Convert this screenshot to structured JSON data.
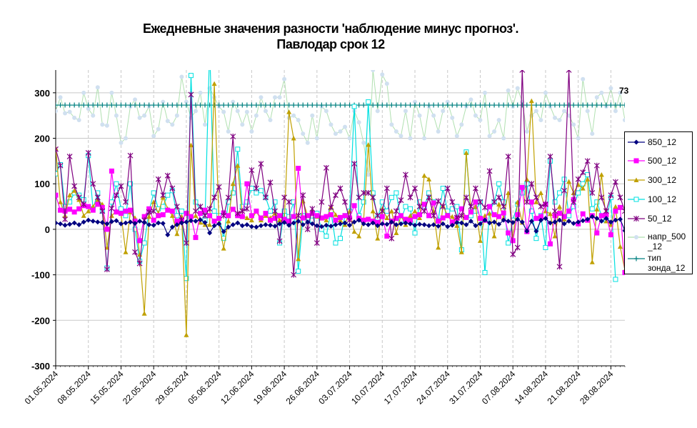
{
  "title_line1": "Ежедневные значения разности 'наблюдение минус прогноз'.",
  "title_line2": "Павлодар    срок 12",
  "chart_data": {
    "type": "line",
    "ylim": [
      -300,
      350
    ],
    "yticks": [
      -300,
      -200,
      -100,
      0,
      100,
      200,
      300
    ],
    "x_tick_labels": [
      "01.05.2024",
      "08.05.2024",
      "15.05.2024",
      "22.05.2024",
      "29.05.2024",
      "05.06.2024",
      "12.06.2024",
      "19.06.2024",
      "26.06.2024",
      "03.07.2024",
      "10.07.2024",
      "17.07.2024",
      "24.07.2024",
      "31.07.2024",
      "07.08.2024",
      "14.08.2024",
      "21.08.2024",
      "28.08.2024"
    ],
    "x_start_date": "01.05.2024",
    "n_days": 123,
    "annotation": "73",
    "series": [
      {
        "name": "850_12",
        "color": "#000080",
        "marker": "diamond",
        "values": [
          14,
          12,
          9,
          11,
          14,
          10,
          16,
          20,
          18,
          16,
          15,
          12,
          17,
          19,
          12,
          14,
          16,
          13,
          18,
          15,
          10,
          9,
          14,
          13,
          -12,
          5,
          10,
          14,
          16,
          19,
          18,
          21,
          15,
          -8,
          8,
          12,
          -5,
          5,
          10,
          14,
          8,
          10,
          6,
          5,
          8,
          10,
          9,
          7,
          12,
          15,
          9,
          14,
          18,
          10,
          16,
          12,
          8,
          6,
          9,
          7,
          10,
          12,
          14,
          9,
          16,
          20,
          12,
          10,
          14,
          8,
          12,
          11,
          16,
          10,
          12,
          14,
          12,
          9,
          11,
          10,
          8,
          10,
          7,
          12,
          6,
          9,
          15,
          14,
          10,
          18,
          8,
          12,
          20,
          14,
          16,
          11,
          20,
          18,
          15,
          22,
          16,
          -4,
          18,
          -4,
          20,
          24,
          14,
          16,
          20,
          12,
          18,
          13,
          16,
          19,
          22,
          28,
          24,
          18,
          24,
          16,
          20,
          22,
          -3
        ]
      },
      {
        "name": "500_12",
        "color": "#FF00FF",
        "marker": "square",
        "values": [
          75,
          42,
          40,
          44,
          38,
          45,
          52,
          50,
          42,
          55,
          48,
          0,
          128,
          38,
          35,
          40,
          42,
          18,
          -25,
          28,
          45,
          20,
          30,
          32,
          42,
          40,
          18,
          20,
          35,
          28,
          -18,
          35,
          42,
          30,
          18,
          24,
          36,
          30,
          44,
          30,
          28,
          100,
          30,
          40,
          25,
          35,
          20,
          24,
          30,
          22,
          18,
          28,
          134,
          25,
          30,
          35,
          30,
          25,
          28,
          32,
          20,
          26,
          30,
          25,
          52,
          24,
          20,
          22,
          18,
          15,
          28,
          -15,
          18,
          24,
          30,
          22,
          20,
          28,
          32,
          55,
          30,
          58,
          18,
          25,
          30,
          16,
          24,
          45,
          26,
          38,
          60,
          24,
          20,
          50,
          32,
          28,
          36,
          -8,
          -25,
          32,
          92,
          -5,
          60,
          24,
          28,
          55,
          -32,
          30,
          35,
          28,
          40,
          65,
          12,
          34,
          20,
          30,
          -8,
          30,
          32,
          -12,
          40,
          48,
          -95
        ]
      },
      {
        "name": "300_12",
        "color": "#C0A000",
        "marker": "triangle",
        "values": [
          178,
          60,
          30,
          75,
          85,
          65,
          30,
          40,
          50,
          65,
          55,
          -40,
          30,
          40,
          35,
          -50,
          38,
          25,
          -55,
          -185,
          28,
          60,
          35,
          70,
          45,
          30,
          -10,
          28,
          -232,
          185,
          30,
          15,
          10,
          10,
          320,
          15,
          -42,
          18,
          100,
          140,
          30,
          25,
          20,
          40,
          20,
          30,
          25,
          35,
          20,
          18,
          258,
          200,
          -65,
          62,
          30,
          40,
          28,
          24,
          20,
          50,
          32,
          20,
          10,
          40,
          -5,
          -15,
          20,
          186,
          40,
          -20,
          45,
          25,
          40,
          -8,
          30,
          10,
          30,
          40,
          25,
          118,
          110,
          40,
          -40,
          52,
          30,
          28,
          8,
          -50,
          168,
          40,
          50,
          -25,
          30,
          35,
          -15,
          55,
          25,
          80,
          -20,
          60,
          15,
          110,
          282,
          60,
          80,
          40,
          34,
          -15,
          50,
          22,
          105,
          80,
          98,
          90,
          110,
          -72,
          44,
          120,
          18,
          10,
          50,
          -38,
          -90
        ]
      },
      {
        "name": "100_12",
        "color": "#00E0E0",
        "marker": "square",
        "values": [
          122,
          142,
          50,
          60,
          80,
          75,
          65,
          162,
          45,
          80,
          40,
          -85,
          60,
          100,
          45,
          30,
          100,
          0,
          -70,
          -30,
          40,
          80,
          45,
          50,
          75,
          85,
          30,
          40,
          -108,
          338,
          60,
          42,
          20,
          400,
          40,
          30,
          -20,
          60,
          80,
          176,
          50,
          60,
          90,
          80,
          85,
          70,
          40,
          60,
          -30,
          40,
          28,
          60,
          -92,
          30,
          25,
          20,
          35,
          0,
          -15,
          40,
          -30,
          -20,
          30,
          40,
          270,
          30,
          60,
          280,
          80,
          25,
          60,
          40,
          70,
          80,
          20,
          50,
          45,
          -8,
          60,
          50,
          80,
          60,
          20,
          90,
          40,
          45,
          50,
          -45,
          170,
          30,
          40,
          60,
          -95,
          40,
          60,
          100,
          60,
          -30,
          20,
          55,
          80,
          100,
          40,
          -20,
          30,
          -40,
          150,
          60,
          80,
          110,
          30,
          50,
          80,
          100,
          120,
          45,
          60,
          30,
          20,
          70,
          -110
        ]
      },
      {
        "name": "50_12",
        "color": "#800080",
        "marker": "star",
        "values": [
          176,
          140,
          22,
          160,
          95,
          70,
          55,
          168,
          100,
          70,
          40,
          -88,
          46,
          75,
          95,
          60,
          162,
          -50,
          -75,
          20,
          38,
          40,
          110,
          75,
          118,
          90,
          50,
          20,
          -30,
          296,
          40,
          50,
          30,
          45,
          70,
          93,
          30,
          70,
          204,
          35,
          40,
          45,
          130,
          90,
          144,
          70,
          103,
          40,
          -26,
          70,
          60,
          -100,
          30,
          75,
          0,
          45,
          -30,
          60,
          135,
          48,
          75,
          90,
          60,
          20,
          144,
          70,
          80,
          80,
          70,
          30,
          40,
          90,
          -20,
          40,
          64,
          120,
          70,
          90,
          50,
          40,
          70,
          30,
          62,
          50,
          90,
          60,
          26,
          30,
          70,
          50,
          90,
          60,
          48,
          128,
          60,
          70,
          50,
          160,
          -55,
          -40,
          350,
          60,
          100,
          70,
          50,
          55,
          160,
          40,
          -82,
          85,
          350,
          60,
          110,
          125,
          150,
          80,
          140,
          70,
          40,
          75,
          104,
          70,
          40,
          25,
          -97
        ]
      },
      {
        "name": "напр_500_12",
        "color": "#D0E0F0",
        "line_color": "#B0E0B0",
        "marker": "circle",
        "values": [
          260,
          290,
          255,
          258,
          245,
          240,
          300,
          265,
          250,
          312,
          230,
          228,
          300,
          250,
          190,
          200,
          270,
          285,
          245,
          250,
          270,
          205,
          220,
          280,
          238,
          230,
          250,
          335,
          280,
          245,
          260,
          300,
          230,
          310,
          290,
          270,
          258,
          215,
          280,
          260,
          230,
          258,
          215,
          250,
          290,
          260,
          240,
          290,
          290,
          330,
          245,
          250,
          240,
          210,
          190,
          250,
          200,
          270,
          260,
          230,
          210,
          215,
          225,
          200,
          260,
          235,
          190,
          120,
          350,
          260,
          340,
          320,
          230,
          215,
          205,
          260,
          200,
          280,
          250,
          200,
          270,
          250,
          215,
          260,
          280,
          245,
          205,
          230,
          270,
          285,
          250,
          240,
          300,
          205,
          215,
          240,
          200,
          305,
          270,
          310,
          280,
          215,
          250,
          260,
          240,
          300,
          270,
          245,
          240,
          260,
          250,
          230,
          200,
          330,
          260,
          210,
          290,
          300,
          270,
          310,
          260,
          300,
          240
        ]
      },
      {
        "name": "тип зонда_12",
        "color": "#008080",
        "marker": "plus",
        "values": [
          273
        ]
      }
    ]
  },
  "legend": [
    {
      "label": "850_12"
    },
    {
      "label": "500_12"
    },
    {
      "label": "300_12"
    },
    {
      "label": "100_12"
    },
    {
      "label": "50_12"
    },
    {
      "label": "напр_500\n_12"
    },
    {
      "label": "тип\nзонда_12"
    }
  ]
}
